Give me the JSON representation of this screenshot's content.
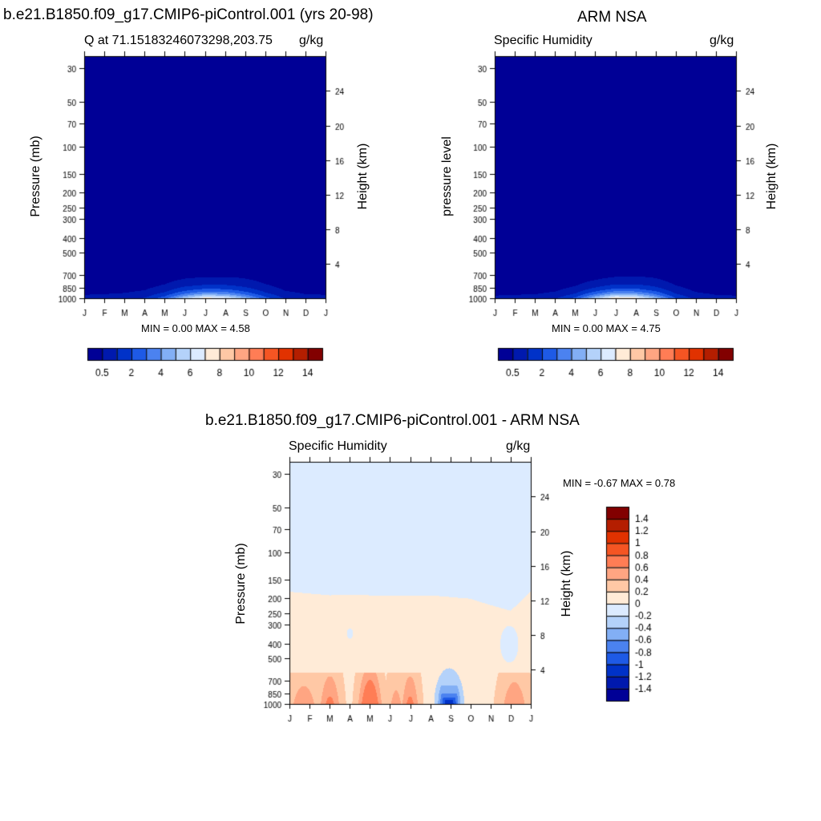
{
  "top_left": {
    "title": "b.e21.B1850.f09_g17.CMIP6-piControl.001 (yrs 20-98)",
    "subtitle_left": "Q at 71.15183246073298,203.75",
    "subtitle_right": "g/kg",
    "ylabel": "Pressure (mb)",
    "ylabel_right": "Height (km)",
    "minmax": "MIN =   0.00 MAX =   4.58"
  },
  "top_right": {
    "title": "ARM NSA",
    "subtitle_left": "Specific Humidity",
    "subtitle_right": "g/kg",
    "ylabel": "pressure level",
    "ylabel_right": "Height (km)",
    "minmax": "MIN =   0.00 MAX =   4.75"
  },
  "bottom": {
    "title": "b.e21.B1850.f09_g17.CMIP6-piControl.001 - ARM NSA",
    "subtitle_left": "Specific Humidity",
    "subtitle_right": "g/kg",
    "ylabel": "Pressure (mb)",
    "ylabel_right": "Height (km)",
    "minmax": "MIN =  -0.67 MAX =   0.78"
  },
  "chart_data": [
    {
      "type": "heatmap",
      "title": "b.e21.B1850.f09_g17.CMIP6-piControl.001 (yrs 20-98)",
      "x_tick_labels": [
        "J",
        "F",
        "M",
        "A",
        "M",
        "J",
        "J",
        "A",
        "S",
        "O",
        "N",
        "D",
        "J"
      ],
      "y_ticks_pressure_mb": [
        30,
        50,
        70,
        100,
        150,
        200,
        250,
        300,
        400,
        500,
        700,
        850,
        1000
      ],
      "y_ticks_height_km": [
        4,
        8,
        12,
        16,
        20,
        24
      ],
      "ylim_pressure_mb": [
        25,
        1000
      ],
      "y_scale": "log",
      "contour_levels": [
        0.5,
        1,
        1.5,
        2,
        2.5,
        3,
        3.5,
        4,
        4.5,
        5,
        5.5,
        6,
        6.5,
        7,
        7.5,
        8,
        8.5,
        9,
        9.5,
        10,
        10.5,
        11,
        11.5,
        12,
        12.5,
        13,
        13.5,
        14,
        14.5
      ],
      "colorbar_labels": [
        "0.5",
        "2",
        "4",
        "6",
        "8",
        "10",
        "12",
        "14"
      ],
      "colorbar_colors": [
        "#000096",
        "#0019AE",
        "#0032C8",
        "#1E5AE6",
        "#4B82F0",
        "#82AFF5",
        "#B4D2FA",
        "#DCEBFF",
        "#FFEBD7",
        "#FFC8A5",
        "#FFA582",
        "#FF7D55",
        "#F55523",
        "#E13200",
        "#B41E00",
        "#820000"
      ],
      "min": 0.0,
      "max": 4.58,
      "profile_months": [
        "J",
        "F",
        "M",
        "A",
        "M",
        "J",
        "J",
        "A",
        "S",
        "O",
        "N",
        "D",
        "J"
      ],
      "surface_q_by_month": [
        0.7,
        0.75,
        0.85,
        1.1,
        1.9,
        3.4,
        4.5,
        4.2,
        3.0,
        1.8,
        1.0,
        0.75,
        0.7
      ],
      "scale_height_mb": [
        320,
        310,
        300,
        290,
        280,
        260,
        240,
        250,
        280,
        300,
        310,
        320,
        320
      ]
    },
    {
      "type": "heatmap",
      "title": "ARM NSA",
      "x_tick_labels": [
        "J",
        "F",
        "M",
        "A",
        "M",
        "J",
        "J",
        "A",
        "S",
        "O",
        "N",
        "D",
        "J"
      ],
      "y_ticks_pressure_mb": [
        30,
        50,
        70,
        100,
        150,
        200,
        250,
        300,
        400,
        500,
        700,
        850,
        1000
      ],
      "y_ticks_height_km": [
        4,
        8,
        12,
        16,
        20,
        24
      ],
      "ylim_pressure_mb": [
        25,
        1000
      ],
      "y_scale": "log",
      "colorbar_labels": [
        "0.5",
        "2",
        "4",
        "6",
        "8",
        "10",
        "12",
        "14"
      ],
      "colorbar_colors": [
        "#000096",
        "#0019AE",
        "#0032C8",
        "#1E5AE6",
        "#4B82F0",
        "#82AFF5",
        "#B4D2FA",
        "#DCEBFF",
        "#FFEBD7",
        "#FFC8A5",
        "#FFA582",
        "#FF7D55",
        "#F55523",
        "#E13200",
        "#B41E00",
        "#820000"
      ],
      "min": 0.0,
      "max": 4.75,
      "profile_months": [
        "J",
        "F",
        "M",
        "A",
        "M",
        "J",
        "J",
        "A",
        "S",
        "O",
        "N",
        "D",
        "J"
      ],
      "surface_q_by_month": [
        0.65,
        0.7,
        0.75,
        1.0,
        1.7,
        3.3,
        4.7,
        4.4,
        3.1,
        1.6,
        0.9,
        0.7,
        0.65
      ],
      "scale_height_mb": [
        330,
        320,
        300,
        280,
        270,
        250,
        240,
        250,
        280,
        300,
        310,
        320,
        330
      ]
    },
    {
      "type": "heatmap",
      "title": "b.e21.B1850.f09_g17.CMIP6-piControl.001 - ARM NSA",
      "x_tick_labels": [
        "J",
        "F",
        "M",
        "A",
        "M",
        "J",
        "J",
        "A",
        "S",
        "O",
        "N",
        "D",
        "J"
      ],
      "y_ticks_pressure_mb": [
        30,
        50,
        70,
        100,
        150,
        200,
        250,
        300,
        400,
        500,
        700,
        850,
        1000
      ],
      "y_ticks_height_km": [
        4,
        8,
        12,
        16,
        20,
        24
      ],
      "ylim_pressure_mb": [
        25,
        1000
      ],
      "y_scale": "log",
      "colorbar_labels": [
        "1.4",
        "1.2",
        "1",
        "0.8",
        "0.6",
        "0.4",
        "0.2",
        "0",
        "-0.2",
        "-0.4",
        "-0.6",
        "-0.8",
        "-1",
        "-1.2",
        "-1.4"
      ],
      "colorbar_colors": [
        "#820000",
        "#B41E00",
        "#E13200",
        "#F55523",
        "#FF7D55",
        "#FFA582",
        "#FFC8A5",
        "#FFEBD7",
        "#DCEBFF",
        "#B4D2FA",
        "#82AFF5",
        "#4B82F0",
        "#1E5AE6",
        "#0032C8",
        "#0019AE",
        "#000096"
      ],
      "min": -0.67,
      "max": 0.78,
      "upper_value": -0.05,
      "boundary_mb_by_month": [
        180,
        185,
        190,
        188,
        190,
        192,
        190,
        190,
        195,
        200,
        220,
        240,
        180
      ],
      "lower_value": 0.1,
      "features": [
        {
          "name": "positive patches near surface",
          "months": [
            "J",
            "F",
            "M",
            "A",
            "M",
            "J",
            "J",
            "O",
            "N",
            "D"
          ],
          "value": 0.3
        },
        {
          "name": "peak positive",
          "month": "M",
          "pressure_mb": 880,
          "value": 0.78
        },
        {
          "name": "negative anomaly",
          "month": "S",
          "pressure_mb": 950,
          "value": -0.67
        },
        {
          "name": "negative column",
          "month": "D",
          "pressure_mb": 400,
          "value": -0.1
        }
      ]
    }
  ]
}
